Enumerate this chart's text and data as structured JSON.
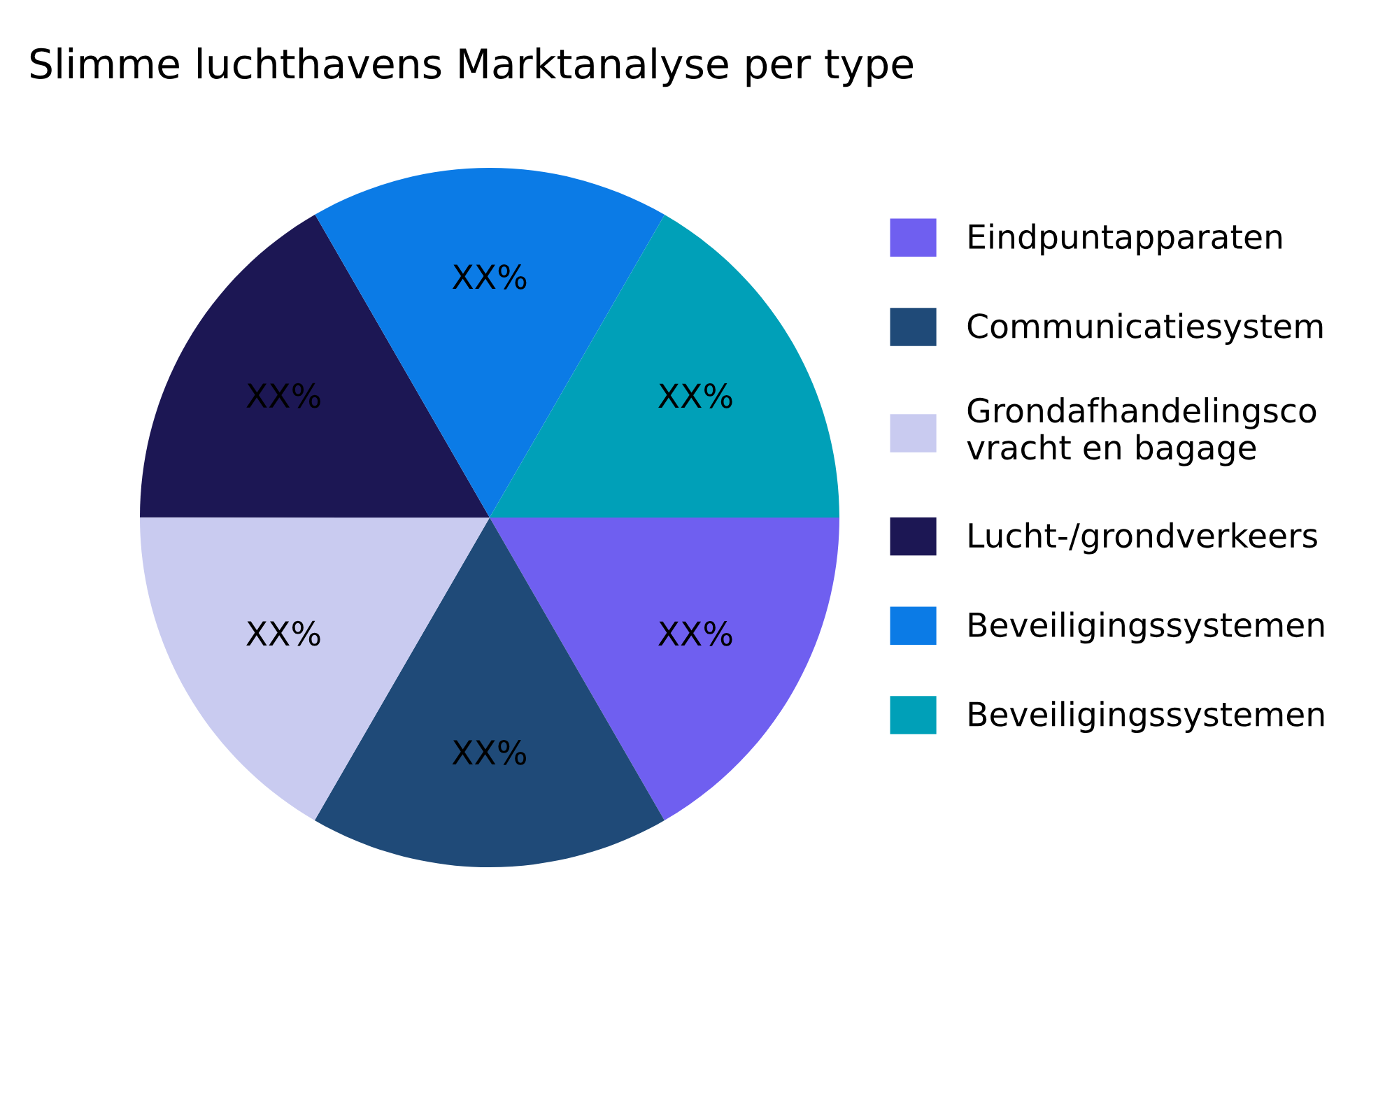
{
  "chart_data": {
    "type": "pie",
    "title": "Slimme luchthavens Marktanalyse per type",
    "categories": [
      "Eindpuntapparaten",
      "Communicatiesystem",
      "Grondafhandelingsco\nvracht en bagage",
      "Lucht-/grondverkeers",
      "Beveiligingssystemen",
      "Beveiligingssystemen"
    ],
    "values": [
      16.67,
      16.67,
      16.67,
      16.67,
      16.66,
      16.66
    ],
    "value_labels": [
      "XX%",
      "XX%",
      "XX%",
      "XX%",
      "XX%",
      "XX%"
    ],
    "colors": [
      "#6f5ff0",
      "#1f4a78",
      "#c9cbf0",
      "#1c1754",
      "#0b7be6",
      "#00a0b8"
    ],
    "legend": "right"
  }
}
